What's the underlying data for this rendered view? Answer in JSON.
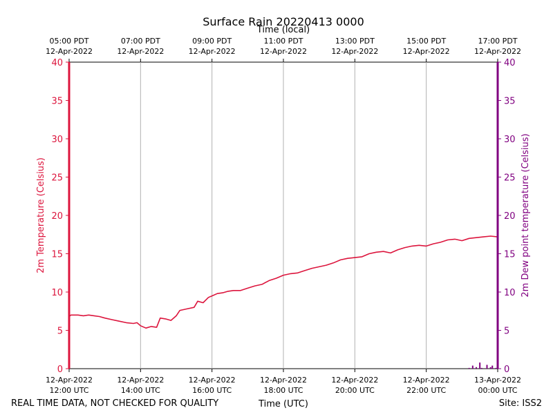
{
  "chart_data": {
    "type": "line",
    "title": "Surface Rain 20220413 0000",
    "top_axis_label": "Time (local)",
    "xlabel": "Time (UTC)",
    "ylabel_left": "2m Temperature (Celsius)",
    "ylabel_right": "2m Dew point temperature (Celsius)",
    "footer_left": "REAL TIME DATA, NOT CHECKED FOR QUALITY",
    "footer_right": "Site: ISS2",
    "x_unit": "hours since 12-Apr-2022 12:00 UTC",
    "xlim": [
      0,
      12
    ],
    "ylim": [
      0,
      40
    ],
    "y_ticks": [
      0,
      5,
      10,
      15,
      20,
      25,
      30,
      35,
      40
    ],
    "grid": "vertical",
    "x_ticks": [
      {
        "x": 0,
        "utc_date": "12-Apr-2022",
        "utc_time": "12:00 UTC",
        "local_time": "05:00 PDT",
        "local_date": "12-Apr-2022"
      },
      {
        "x": 2,
        "utc_date": "12-Apr-2022",
        "utc_time": "14:00 UTC",
        "local_time": "07:00 PDT",
        "local_date": "12-Apr-2022"
      },
      {
        "x": 4,
        "utc_date": "12-Apr-2022",
        "utc_time": "16:00 UTC",
        "local_time": "09:00 PDT",
        "local_date": "12-Apr-2022"
      },
      {
        "x": 6,
        "utc_date": "12-Apr-2022",
        "utc_time": "18:00 UTC",
        "local_time": "11:00 PDT",
        "local_date": "12-Apr-2022"
      },
      {
        "x": 8,
        "utc_date": "12-Apr-2022",
        "utc_time": "20:00 UTC",
        "local_time": "13:00 PDT",
        "local_date": "12-Apr-2022"
      },
      {
        "x": 10,
        "utc_date": "12-Apr-2022",
        "utc_time": "22:00 UTC",
        "local_time": "15:00 PDT",
        "local_date": "12-Apr-2022"
      },
      {
        "x": 12,
        "utc_date": "13-Apr-2022",
        "utc_time": "00:00 UTC",
        "local_time": "17:00 PDT",
        "local_date": "12-Apr-2022"
      }
    ],
    "series": [
      {
        "name": "2m Temperature",
        "axis": "left",
        "color": "#dc143c",
        "points": [
          [
            0.0,
            6.8
          ],
          [
            0.05,
            7.0
          ],
          [
            0.25,
            7.0
          ],
          [
            0.4,
            6.9
          ],
          [
            0.55,
            7.0
          ],
          [
            0.7,
            6.9
          ],
          [
            0.85,
            6.8
          ],
          [
            1.0,
            6.6
          ],
          [
            1.2,
            6.4
          ],
          [
            1.4,
            6.2
          ],
          [
            1.6,
            6.0
          ],
          [
            1.8,
            5.9
          ],
          [
            1.9,
            6.0
          ],
          [
            2.0,
            5.6
          ],
          [
            2.15,
            5.3
          ],
          [
            2.3,
            5.5
          ],
          [
            2.45,
            5.4
          ],
          [
            2.55,
            6.6
          ],
          [
            2.7,
            6.5
          ],
          [
            2.85,
            6.3
          ],
          [
            3.0,
            6.9
          ],
          [
            3.1,
            7.6
          ],
          [
            3.3,
            7.8
          ],
          [
            3.5,
            8.0
          ],
          [
            3.6,
            8.8
          ],
          [
            3.75,
            8.6
          ],
          [
            3.9,
            9.3
          ],
          [
            4.0,
            9.5
          ],
          [
            4.15,
            9.8
          ],
          [
            4.3,
            9.9
          ],
          [
            4.45,
            10.1
          ],
          [
            4.6,
            10.2
          ],
          [
            4.8,
            10.2
          ],
          [
            5.0,
            10.5
          ],
          [
            5.2,
            10.8
          ],
          [
            5.4,
            11.0
          ],
          [
            5.6,
            11.5
          ],
          [
            5.8,
            11.8
          ],
          [
            6.0,
            12.2
          ],
          [
            6.2,
            12.4
          ],
          [
            6.4,
            12.5
          ],
          [
            6.6,
            12.8
          ],
          [
            6.8,
            13.1
          ],
          [
            7.0,
            13.3
          ],
          [
            7.2,
            13.5
          ],
          [
            7.4,
            13.8
          ],
          [
            7.6,
            14.2
          ],
          [
            7.8,
            14.4
          ],
          [
            8.0,
            14.5
          ],
          [
            8.2,
            14.6
          ],
          [
            8.4,
            15.0
          ],
          [
            8.6,
            15.2
          ],
          [
            8.8,
            15.3
          ],
          [
            9.0,
            15.1
          ],
          [
            9.2,
            15.5
          ],
          [
            9.4,
            15.8
          ],
          [
            9.6,
            16.0
          ],
          [
            9.8,
            16.1
          ],
          [
            10.0,
            16.0
          ],
          [
            10.2,
            16.3
          ],
          [
            10.4,
            16.5
          ],
          [
            10.6,
            16.8
          ],
          [
            10.8,
            16.9
          ],
          [
            11.0,
            16.7
          ],
          [
            11.2,
            17.0
          ],
          [
            11.4,
            17.1
          ],
          [
            11.6,
            17.2
          ],
          [
            11.8,
            17.3
          ],
          [
            12.0,
            17.2
          ]
        ]
      },
      {
        "name": "2m Dew point temperature",
        "axis": "right",
        "color": "#800080",
        "points": [
          [
            11.2,
            0.1
          ],
          [
            11.3,
            0.4
          ],
          [
            11.4,
            0.2
          ],
          [
            11.5,
            0.8
          ],
          [
            11.55,
            0.1
          ],
          [
            11.7,
            0.5
          ],
          [
            11.8,
            0.2
          ],
          [
            11.85,
            0.4
          ],
          [
            11.95,
            0.1
          ]
        ]
      }
    ]
  }
}
